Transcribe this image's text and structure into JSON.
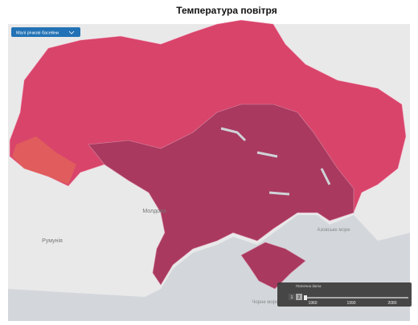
{
  "header": {
    "title": "Температура  повітря"
  },
  "controls": {
    "layer_select": "Малі річкові басейни"
  },
  "map": {
    "labels": [
      "Молдова",
      "Румунія",
      "Азовське море",
      "Чорне море"
    ]
  },
  "timeline": {
    "label": "Поточна дата",
    "buttons": [
      "1",
      "2"
    ],
    "years": [
      "1960",
      "1990",
      "2080"
    ]
  }
}
